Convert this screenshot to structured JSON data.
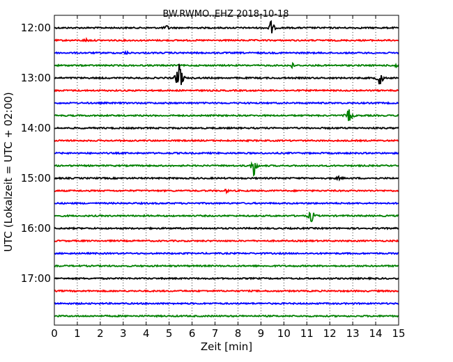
{
  "chart_data": {
    "type": "line",
    "title": "BW.RWMO..EHZ 2018-10-18",
    "xlabel": "Zeit  [min]",
    "ylabel": "UTC (Lokalzeit = UTC + 02:00)",
    "xlim": [
      0,
      15
    ],
    "x_ticks": [
      "0",
      "1",
      "2",
      "3",
      "4",
      "5",
      "6",
      "7",
      "8",
      "9",
      "10",
      "11",
      "12",
      "13",
      "14",
      "15"
    ],
    "y_ticks": [
      "12:00",
      "13:00",
      "14:00",
      "15:00",
      "16:00",
      "17:00"
    ],
    "grid": "vertical dotted",
    "color_cycle": [
      "#000000",
      "#ff0000",
      "#0000ff",
      "#008000"
    ],
    "traces": [
      {
        "label": "12:00",
        "color": "#000000",
        "events": [
          {
            "t": 4.9,
            "amp": 0.25
          },
          {
            "t": 9.45,
            "amp": 1.0
          }
        ]
      },
      {
        "label": "12:15",
        "color": "#ff0000",
        "events": [
          {
            "t": 1.4,
            "amp": 0.15
          }
        ]
      },
      {
        "label": "12:30",
        "color": "#0000ff",
        "events": [
          {
            "t": 3.1,
            "amp": 0.2
          }
        ]
      },
      {
        "label": "12:45",
        "color": "#008000",
        "events": [
          {
            "t": 10.35,
            "amp": 0.3
          },
          {
            "t": 14.9,
            "amp": 0.3
          }
        ]
      },
      {
        "label": "13:00",
        "color": "#000000",
        "events": [
          {
            "t": 5.45,
            "amp": 3.0
          },
          {
            "t": 14.2,
            "amp": 1.2
          }
        ]
      },
      {
        "label": "13:15",
        "color": "#ff0000",
        "events": []
      },
      {
        "label": "13:30",
        "color": "#0000ff",
        "events": []
      },
      {
        "label": "13:45",
        "color": "#008000",
        "events": [
          {
            "t": 12.85,
            "amp": 1.1
          }
        ]
      },
      {
        "label": "14:00",
        "color": "#000000",
        "events": []
      },
      {
        "label": "14:15",
        "color": "#ff0000",
        "events": []
      },
      {
        "label": "14:30",
        "color": "#0000ff",
        "events": []
      },
      {
        "label": "14:45",
        "color": "#008000",
        "events": [
          {
            "t": 8.7,
            "amp": 1.3
          }
        ]
      },
      {
        "label": "15:00",
        "color": "#000000",
        "events": [
          {
            "t": 12.4,
            "amp": 0.15
          }
        ]
      },
      {
        "label": "15:15",
        "color": "#ff0000",
        "events": [
          {
            "t": 7.5,
            "amp": 0.15
          }
        ]
      },
      {
        "label": "15:30",
        "color": "#0000ff",
        "events": []
      },
      {
        "label": "15:45",
        "color": "#008000",
        "events": [
          {
            "t": 11.2,
            "amp": 0.9
          }
        ]
      },
      {
        "label": "16:00",
        "color": "#000000",
        "events": []
      },
      {
        "label": "16:15",
        "color": "#ff0000",
        "events": []
      },
      {
        "label": "16:30",
        "color": "#0000ff",
        "events": []
      },
      {
        "label": "16:45",
        "color": "#008000",
        "events": []
      },
      {
        "label": "17:00",
        "color": "#000000",
        "events": []
      },
      {
        "label": "17:15",
        "color": "#ff0000",
        "events": []
      },
      {
        "label": "17:30",
        "color": "#0000ff",
        "events": []
      },
      {
        "label": "17:45",
        "color": "#008000",
        "events": []
      }
    ]
  }
}
